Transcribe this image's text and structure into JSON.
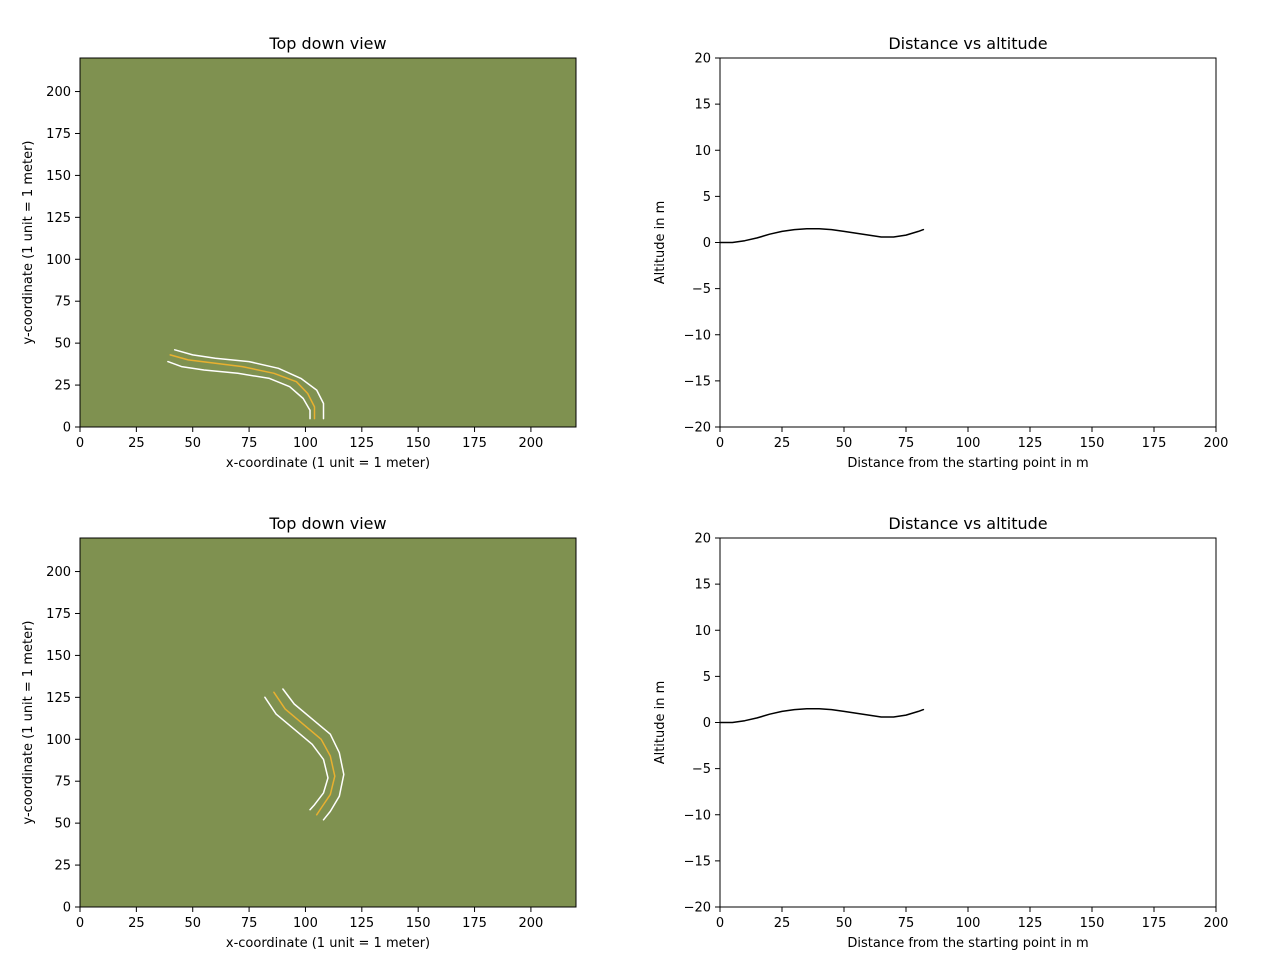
{
  "chart_data": [
    {
      "id": "top-left",
      "type": "line",
      "title": "Top down view",
      "xlabel": "x-coordinate (1 unit = 1 meter)",
      "ylabel": "y-coordinate (1 unit = 1 meter)",
      "xlim": [
        0,
        220
      ],
      "ylim": [
        0,
        220
      ],
      "xticks": [
        0,
        25,
        50,
        75,
        100,
        125,
        150,
        175,
        200
      ],
      "yticks": [
        0,
        25,
        50,
        75,
        100,
        125,
        150,
        175,
        200
      ],
      "background_color": "#7f9150",
      "grid": false,
      "series": [
        {
          "color": "#ffffff",
          "points": [
            [
              39,
              39
            ],
            [
              45,
              36
            ],
            [
              55,
              34
            ],
            [
              70,
              32
            ],
            [
              84,
              29
            ],
            [
              93,
              24
            ],
            [
              99,
              17
            ],
            [
              102,
              10
            ],
            [
              102,
              5
            ]
          ]
        },
        {
          "color": "#e8b030",
          "points": [
            [
              40,
              43
            ],
            [
              48,
              40
            ],
            [
              60,
              38
            ],
            [
              72,
              36
            ],
            [
              86,
              32
            ],
            [
              96,
              27
            ],
            [
              101,
              20
            ],
            [
              104,
              12
            ],
            [
              104,
              5
            ]
          ]
        },
        {
          "color": "#ffffff",
          "points": [
            [
              42,
              46
            ],
            [
              50,
              43
            ],
            [
              60,
              41
            ],
            [
              75,
              39
            ],
            [
              88,
              35
            ],
            [
              98,
              29
            ],
            [
              105,
              22
            ],
            [
              108,
              14
            ],
            [
              108,
              5
            ]
          ]
        }
      ]
    },
    {
      "id": "top-right",
      "type": "line",
      "title": "Distance vs altitude",
      "xlabel": "Distance from the starting point in m",
      "ylabel": "Altitude in m",
      "xlim": [
        0,
        200
      ],
      "ylim": [
        -20,
        20
      ],
      "xticks": [
        0,
        25,
        50,
        75,
        100,
        125,
        150,
        175,
        200
      ],
      "yticks": [
        -20,
        -15,
        -10,
        -5,
        0,
        5,
        10,
        15,
        20
      ],
      "background_color": "#ffffff",
      "grid": false,
      "series": [
        {
          "color": "#000000",
          "points": [
            [
              0,
              0
            ],
            [
              5,
              0
            ],
            [
              10,
              0.2
            ],
            [
              15,
              0.5
            ],
            [
              20,
              0.9
            ],
            [
              25,
              1.2
            ],
            [
              30,
              1.4
            ],
            [
              35,
              1.5
            ],
            [
              40,
              1.5
            ],
            [
              45,
              1.4
            ],
            [
              50,
              1.2
            ],
            [
              55,
              1.0
            ],
            [
              60,
              0.8
            ],
            [
              65,
              0.6
            ],
            [
              70,
              0.6
            ],
            [
              75,
              0.8
            ],
            [
              80,
              1.2
            ],
            [
              82,
              1.4
            ]
          ]
        }
      ]
    },
    {
      "id": "bottom-left",
      "type": "line",
      "title": "Top down view",
      "xlabel": "x-coordinate (1 unit = 1 meter)",
      "ylabel": "y-coordinate (1 unit = 1 meter)",
      "xlim": [
        0,
        220
      ],
      "ylim": [
        0,
        220
      ],
      "xticks": [
        0,
        25,
        50,
        75,
        100,
        125,
        150,
        175,
        200
      ],
      "yticks": [
        0,
        25,
        50,
        75,
        100,
        125,
        150,
        175,
        200
      ],
      "background_color": "#7f9150",
      "grid": false,
      "series": [
        {
          "color": "#ffffff",
          "points": [
            [
              82,
              125
            ],
            [
              87,
              115
            ],
            [
              95,
              106
            ],
            [
              103,
              97
            ],
            [
              108,
              88
            ],
            [
              110,
              77
            ],
            [
              108,
              68
            ],
            [
              104,
              61
            ],
            [
              102,
              58
            ]
          ]
        },
        {
          "color": "#e8b030",
          "points": [
            [
              86,
              128
            ],
            [
              91,
              118
            ],
            [
              99,
              109
            ],
            [
              107,
              100
            ],
            [
              111,
              90
            ],
            [
              113,
              78
            ],
            [
              111,
              67
            ],
            [
              107,
              59
            ],
            [
              105,
              55
            ]
          ]
        },
        {
          "color": "#ffffff",
          "points": [
            [
              90,
              130
            ],
            [
              95,
              121
            ],
            [
              103,
              112
            ],
            [
              111,
              103
            ],
            [
              115,
              92
            ],
            [
              117,
              79
            ],
            [
              115,
              66
            ],
            [
              111,
              57
            ],
            [
              108,
              52
            ]
          ]
        }
      ]
    },
    {
      "id": "bottom-right",
      "type": "line",
      "title": "Distance vs altitude",
      "xlabel": "Distance from the starting point in m",
      "ylabel": "Altitude in m",
      "xlim": [
        0,
        200
      ],
      "ylim": [
        -20,
        20
      ],
      "xticks": [
        0,
        25,
        50,
        75,
        100,
        125,
        150,
        175,
        200
      ],
      "yticks": [
        -20,
        -15,
        -10,
        -5,
        0,
        5,
        10,
        15,
        20
      ],
      "background_color": "#ffffff",
      "grid": false,
      "series": [
        {
          "color": "#000000",
          "points": [
            [
              0,
              0
            ],
            [
              5,
              0
            ],
            [
              10,
              0.2
            ],
            [
              15,
              0.5
            ],
            [
              20,
              0.9
            ],
            [
              25,
              1.2
            ],
            [
              30,
              1.4
            ],
            [
              35,
              1.5
            ],
            [
              40,
              1.5
            ],
            [
              45,
              1.4
            ],
            [
              50,
              1.2
            ],
            [
              55,
              1.0
            ],
            [
              60,
              0.8
            ],
            [
              65,
              0.6
            ],
            [
              70,
              0.6
            ],
            [
              75,
              0.8
            ],
            [
              80,
              1.2
            ],
            [
              82,
              1.4
            ]
          ]
        }
      ]
    }
  ]
}
